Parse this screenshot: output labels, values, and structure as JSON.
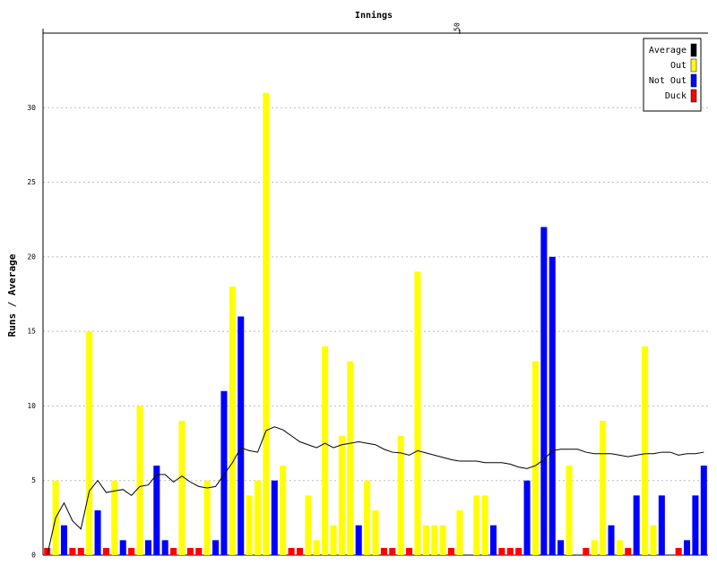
{
  "chart_data": {
    "type": "bar",
    "x_label": "Innings",
    "y_label": "Runs / Average",
    "x": [
      1,
      2,
      3,
      4,
      5,
      6,
      7,
      8,
      9,
      10,
      11,
      12,
      13,
      14,
      15,
      16,
      17,
      18,
      19,
      20,
      21,
      22,
      23,
      24,
      25,
      26,
      27,
      28,
      29,
      30,
      31,
      32,
      33,
      34,
      35,
      36,
      37,
      38,
      39,
      40,
      41,
      42,
      43,
      44,
      45,
      46,
      47,
      48,
      49,
      50,
      51,
      52,
      53,
      54,
      55,
      56,
      57,
      58,
      59,
      60,
      61,
      62,
      63,
      64,
      65,
      66,
      67,
      68,
      69,
      70,
      71,
      72,
      73,
      74,
      75,
      76,
      77,
      78,
      79
    ],
    "xlim": [
      0.5,
      79.5
    ],
    "xticks": [
      50
    ],
    "ylim": [
      0,
      35
    ],
    "yticks": [
      0,
      5,
      10,
      15,
      20,
      25,
      30
    ],
    "grid": true,
    "legend": "upper right",
    "series": [
      {
        "name": "Average",
        "type": "line",
        "color": "#000000",
        "values": [
          0,
          2.5,
          3.5,
          2.3,
          1.75,
          4.3,
          5,
          4.2,
          4.3,
          4.4,
          4,
          4.6,
          4.7,
          5.4,
          5.4,
          4.9,
          5.3,
          4.9,
          4.6,
          4.5,
          4.6,
          5.4,
          6.2,
          7.2,
          7,
          6.9,
          8.35,
          8.6,
          8.4,
          8,
          7.6,
          7.4,
          7.2,
          7.5,
          7.2,
          7.4,
          7.5,
          7.6,
          7.5,
          7.4,
          7.1,
          6.9,
          6.85,
          6.7,
          7,
          6.85,
          6.7,
          6.55,
          6.4,
          6.3,
          6.3,
          6.3,
          6.2,
          6.2,
          6.2,
          6.1,
          5.9,
          5.8,
          6,
          6.4,
          7,
          7.1,
          7.1,
          7.1,
          6.9,
          6.8,
          6.8,
          6.8,
          6.7,
          6.6,
          6.7,
          6.8,
          6.8,
          6.9,
          6.9,
          6.7,
          6.8,
          6.8,
          6.9
        ]
      },
      {
        "name": "Out",
        "type": "bar",
        "color": "#ffff00",
        "values": [
          null,
          5,
          null,
          null,
          null,
          15,
          null,
          null,
          5,
          null,
          null,
          10,
          null,
          null,
          null,
          null,
          9,
          null,
          null,
          5,
          null,
          null,
          18,
          null,
          4,
          5,
          31,
          null,
          6,
          null,
          null,
          4,
          1,
          14,
          2,
          8,
          13,
          null,
          5,
          3,
          null,
          null,
          8,
          null,
          19,
          2,
          2,
          2,
          null,
          3,
          null,
          4,
          4,
          null,
          null,
          null,
          null,
          null,
          13,
          null,
          null,
          null,
          6,
          null,
          null,
          1,
          9,
          null,
          1,
          null,
          null,
          14,
          2,
          null,
          null,
          null,
          null,
          null,
          null
        ]
      },
      {
        "name": "Not Out",
        "type": "bar",
        "color": "#0000ff",
        "values": [
          null,
          null,
          2,
          null,
          null,
          null,
          3,
          null,
          null,
          1,
          null,
          null,
          1,
          6,
          1,
          null,
          null,
          null,
          null,
          null,
          1,
          11,
          null,
          16,
          null,
          null,
          null,
          5,
          null,
          null,
          null,
          null,
          null,
          null,
          null,
          null,
          null,
          2,
          null,
          null,
          null,
          null,
          null,
          null,
          null,
          null,
          null,
          null,
          null,
          null,
          null,
          null,
          null,
          2,
          null,
          null,
          null,
          5,
          null,
          22,
          20,
          1,
          null,
          null,
          null,
          null,
          null,
          2,
          null,
          null,
          4,
          null,
          null,
          4,
          null,
          null,
          1,
          4,
          6
        ]
      },
      {
        "name": "Duck",
        "type": "bar",
        "color": "#ff0000",
        "values": [
          0,
          null,
          null,
          0,
          0,
          null,
          null,
          0,
          null,
          null,
          0,
          null,
          null,
          null,
          null,
          0,
          null,
          0,
          0,
          null,
          null,
          null,
          null,
          null,
          null,
          null,
          null,
          null,
          null,
          0,
          0,
          null,
          null,
          null,
          null,
          null,
          null,
          null,
          null,
          null,
          0,
          0,
          null,
          0,
          null,
          null,
          null,
          null,
          0,
          null,
          null,
          null,
          null,
          null,
          0,
          0,
          0,
          null,
          null,
          null,
          null,
          null,
          null,
          null,
          0,
          null,
          null,
          null,
          null,
          0,
          null,
          null,
          null,
          null,
          null,
          0,
          null,
          null,
          null
        ]
      }
    ]
  }
}
